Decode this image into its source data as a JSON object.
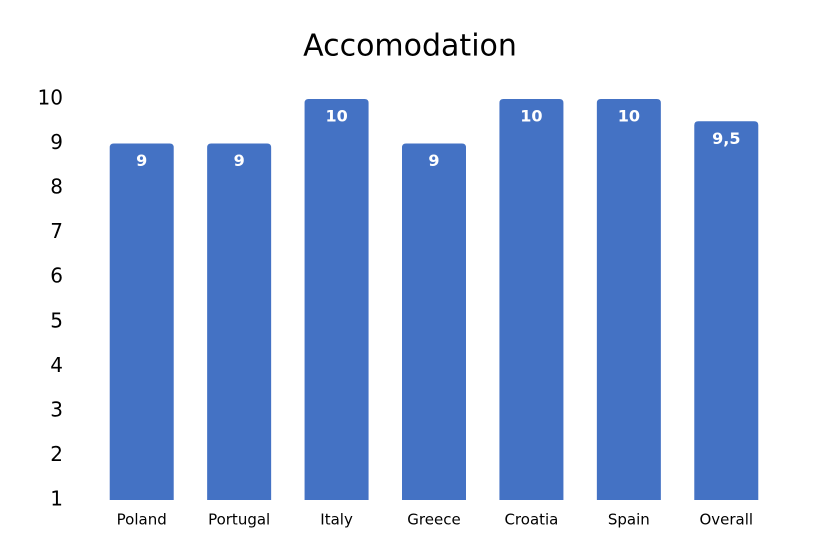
{
  "chart_data": {
    "type": "bar",
    "title": "Accomodation",
    "categories": [
      "Poland",
      "Portugal",
      "Italy",
      "Greece",
      "Croatia",
      "Spain",
      "Overall"
    ],
    "values": [
      9,
      9,
      10,
      9,
      10,
      10,
      9.5
    ],
    "value_labels": [
      "9",
      "9",
      "10",
      "9",
      "10",
      "10",
      "9,5"
    ],
    "color": "#4472c4",
    "ylim": [
      1,
      10
    ],
    "yticks": [
      1,
      2,
      3,
      4,
      5,
      6,
      7,
      8,
      9,
      10
    ],
    "grid": false
  }
}
